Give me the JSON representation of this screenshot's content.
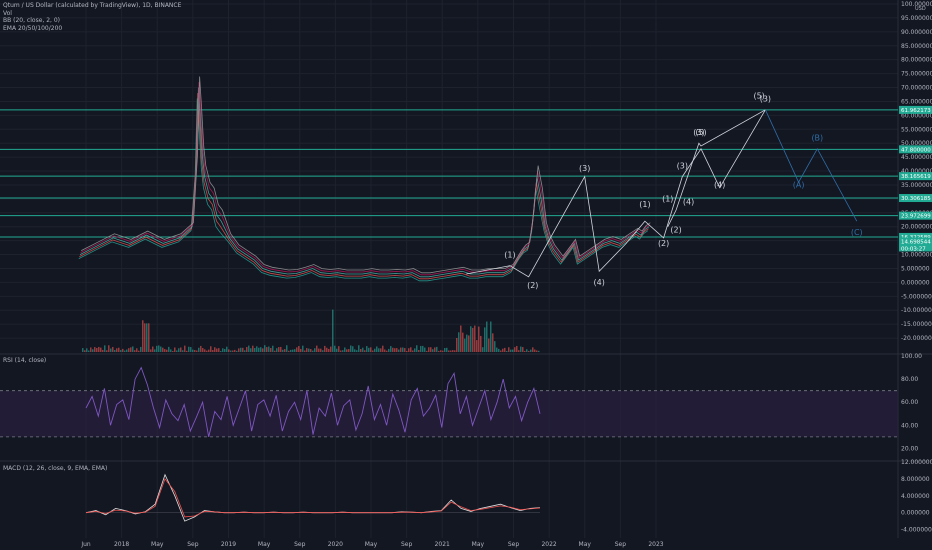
{
  "header": {
    "title": "Qtum / US Dollar (calculated by TradingView), 1D, BINANCE",
    "vol": "Vol",
    "bb": "BB (20, close, 2, 0)",
    "ema": "EMA 20/50/100/200"
  },
  "rsi": {
    "label": "RSI (14, close)"
  },
  "macd": {
    "label": "MACD (12, 26, close, 9, EMA, EMA)"
  },
  "colors": {
    "background": "#131722",
    "grid": "#1e222d",
    "axis_text": "#b2b5be",
    "level_line": "#22ab94",
    "wave_white": "#d1d4dc",
    "wave_blue": "#2f6ea8",
    "rsi_line": "#7e57c2",
    "rsi_band": "#2a1f3f",
    "macd_line": "#e0e0e0",
    "signal_line": "#ef5350",
    "price_green": "#26a69a",
    "price_red": "#ef5350"
  },
  "chart_data": [
    {
      "type": "line",
      "pane": "price",
      "ylabel": "USD",
      "ylim": [
        -25,
        100
      ],
      "yticks": [
        "100.000000",
        "95.000000",
        "90.000000",
        "85.000000",
        "80.000000",
        "75.000000",
        "70.000000",
        "65.000000",
        "60.000000",
        "55.000000",
        "50.000000",
        "45.000000",
        "40.000000",
        "35.000000",
        "30.000000",
        "25.000000",
        "20.000000",
        "15.000000",
        "10.000000",
        "5.000000",
        "0.000000",
        "-5.000000",
        "-10.000000",
        "-15.000000",
        "-20.000000"
      ],
      "x_ticks": [
        "Jun",
        "2018",
        "May",
        "Sep",
        "2019",
        "May",
        "Sep",
        "2020",
        "May",
        "Sep",
        "2021",
        "May",
        "Sep",
        "2022",
        "May",
        "Sep",
        "2023"
      ],
      "grid": true,
      "horizontal_levels": [
        61.9621,
        47.8,
        38.1656,
        30.3061,
        23.9726,
        16.3226
      ],
      "level_labels": [
        "61.962173",
        "47.800000",
        "38.165619",
        "30.306185",
        "23.972699",
        "16.322589"
      ],
      "price_labels": [
        "14.698544",
        "00:03:27"
      ],
      "series": [
        {
          "values_x": [
            0,
            8,
            16,
            24,
            32,
            40,
            48,
            54,
            56,
            57,
            58,
            59,
            60,
            62,
            64,
            66,
            68,
            72,
            76,
            80,
            84,
            88,
            92,
            96,
            100,
            104,
            108,
            112,
            116,
            120,
            124,
            128,
            132,
            136,
            140,
            144,
            148,
            152,
            156,
            160,
            164,
            168,
            172,
            176,
            180,
            184,
            188,
            192,
            196,
            200,
            204,
            208,
            212,
            214,
            216,
            218,
            220,
            222,
            224,
            226,
            228,
            230,
            232,
            234,
            236,
            238,
            240,
            244,
            248,
            252,
            256,
            260,
            264,
            266,
            268,
            270,
            272,
            274
          ],
          "values_y": [
            10,
            13,
            16,
            14,
            17,
            14,
            16,
            20,
            42,
            70,
            58,
            45,
            38,
            32,
            30,
            24,
            22,
            16,
            12,
            10,
            8,
            5,
            4,
            3.5,
            3,
            3.2,
            4,
            5,
            3.5,
            3.2,
            3.5,
            3,
            3,
            3,
            3.5,
            3,
            3,
            3.2,
            3,
            3.5,
            2,
            2,
            2.5,
            3,
            3.5,
            4,
            3,
            3,
            3.5,
            3.5,
            3.5,
            5,
            10,
            12,
            13,
            22,
            38,
            30,
            20,
            15,
            12,
            10,
            8,
            10,
            12,
            14,
            8,
            10,
            12,
            14,
            15,
            14,
            16,
            17,
            18,
            17,
            19,
            20
          ]
        }
      ],
      "volume_note": "volume histogram",
      "wave_labels_white": [
        {
          "text": "(1)",
          "x": 207,
          "y": 9
        },
        {
          "text": "(2)",
          "x": 218,
          "y": -2
        },
        {
          "text": "(3)",
          "x": 243,
          "y": 40
        },
        {
          "text": "(4)",
          "x": 250,
          "y": -1
        },
        {
          "text": "(1)",
          "x": 272,
          "y": 27
        },
        {
          "text": "(2)",
          "x": 281,
          "y": 13
        },
        {
          "text": "(1)",
          "x": 283,
          "y": 29
        },
        {
          "text": "(2)",
          "x": 287,
          "y": 18
        },
        {
          "text": "(3)",
          "x": 290,
          "y": 41
        },
        {
          "text": "(4)",
          "x": 293,
          "y": 28
        },
        {
          "text": "(3)",
          "x": 298,
          "y": 53
        },
        {
          "text": "(5)",
          "x": 299,
          "y": 53
        },
        {
          "text": "(4)",
          "x": 308,
          "y": 34
        },
        {
          "text": "(5)",
          "x": 327,
          "y": 66
        },
        {
          "text": "(3)",
          "x": 330,
          "y": 65
        }
      ],
      "wave_labels_blue": [
        {
          "text": "(A)",
          "x": 346,
          "y": 34
        },
        {
          "text": "(B)",
          "x": 355,
          "y": 51
        },
        {
          "text": "(C)",
          "x": 374,
          "y": 17
        }
      ]
    },
    {
      "type": "line",
      "pane": "rsi",
      "ylim": [
        10,
        100
      ],
      "yticks": [
        "100.00",
        "80.00",
        "60.00",
        "40.00",
        "20.00"
      ],
      "bands": [
        70,
        30
      ],
      "values": [
        55,
        65,
        48,
        72,
        40,
        58,
        62,
        45,
        80,
        90,
        75,
        55,
        38,
        62,
        50,
        44,
        58,
        35,
        47,
        60,
        30,
        52,
        45,
        65,
        40,
        55,
        70,
        35,
        58,
        62,
        48,
        66,
        35,
        52,
        60,
        45,
        70,
        32,
        55,
        48,
        68,
        40,
        57,
        62,
        36,
        50,
        74,
        45,
        58,
        40,
        67,
        53,
        34,
        62,
        72,
        48,
        55,
        66,
        38,
        76,
        85,
        50,
        65,
        40,
        55,
        70,
        45,
        60,
        80,
        55,
        65,
        44,
        60,
        72,
        50
      ]
    },
    {
      "type": "line",
      "pane": "macd",
      "ylim": [
        -6,
        12
      ],
      "yticks": [
        "12.000000",
        "8.000000",
        "4.000000",
        "0.000000",
        "-4.000000"
      ],
      "series": [
        {
          "name": "MACD",
          "values": [
            0,
            0.5,
            -0.5,
            1,
            0.5,
            -0.3,
            0.2,
            2,
            9,
            4,
            -2,
            -1,
            0.5,
            0.2,
            0,
            0,
            0.1,
            0,
            0,
            0.1,
            0,
            0,
            0.1,
            0,
            0,
            0,
            0.1,
            0,
            0,
            0,
            0,
            0,
            0.2,
            0.1,
            0,
            0.3,
            0.5,
            3,
            1,
            0.3,
            1,
            1.5,
            2,
            1.2,
            0.5,
            1,
            1.2
          ]
        },
        {
          "name": "Signal",
          "values": [
            0,
            0.3,
            -0.2,
            0.6,
            0.4,
            -0.1,
            0.1,
            1.5,
            8,
            5,
            -1,
            -0.8,
            0.3,
            0.2,
            0,
            0,
            0.1,
            0,
            0,
            0.1,
            0,
            0,
            0.1,
            0,
            0,
            0,
            0.1,
            0,
            0,
            0,
            0,
            0,
            0.1,
            0.1,
            0,
            0.2,
            0.4,
            2.5,
            1.4,
            0.5,
            0.8,
            1.2,
            1.6,
            1.3,
            0.7,
            0.9,
            1.1
          ]
        }
      ]
    }
  ]
}
